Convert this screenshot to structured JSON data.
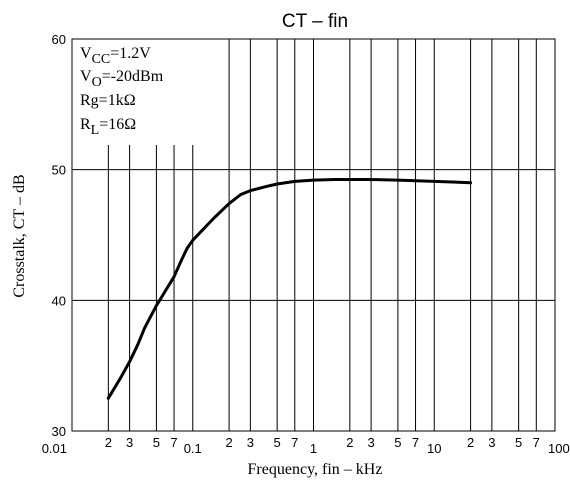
{
  "chart_data": {
    "type": "line",
    "title": "CT – fin",
    "xlabel": "Frequency, fin – kHz",
    "ylabel": "Crosstalk, CT – dB",
    "x_scale": "log",
    "xlim": [
      0.01,
      100
    ],
    "ylim": [
      30,
      60
    ],
    "grid": true,
    "y_ticks": [
      30,
      40,
      50,
      60
    ],
    "x_major_ticks": [
      {
        "value": 0.01,
        "label": "0.01"
      },
      {
        "value": 0.1,
        "label": "0.1"
      },
      {
        "value": 1,
        "label": "1"
      },
      {
        "value": 10,
        "label": "10"
      },
      {
        "value": 100,
        "label": "100"
      }
    ],
    "x_minor_ticks": [
      {
        "value": 0.02,
        "label": "2"
      },
      {
        "value": 0.03,
        "label": "3"
      },
      {
        "value": 0.05,
        "label": "5"
      },
      {
        "value": 0.07,
        "label": "7"
      },
      {
        "value": 0.2,
        "label": "2"
      },
      {
        "value": 0.3,
        "label": "3"
      },
      {
        "value": 0.5,
        "label": "5"
      },
      {
        "value": 0.7,
        "label": "7"
      },
      {
        "value": 2,
        "label": "2"
      },
      {
        "value": 3,
        "label": "3"
      },
      {
        "value": 5,
        "label": "5"
      },
      {
        "value": 7,
        "label": "7"
      },
      {
        "value": 20,
        "label": "2"
      },
      {
        "value": 30,
        "label": "3"
      },
      {
        "value": 50,
        "label": "5"
      },
      {
        "value": 70,
        "label": "7"
      }
    ],
    "conditions": [
      {
        "base": "V",
        "sub": "CC",
        "rest": "=1.2V"
      },
      {
        "base": "V",
        "sub": "O",
        "rest": "=-20dBm"
      },
      {
        "base": "Rg=1kΩ",
        "sub": "",
        "rest": ""
      },
      {
        "base": "R",
        "sub": "L",
        "rest": "=16Ω"
      }
    ],
    "series": [
      {
        "x": [
          0.02,
          0.025,
          0.03,
          0.035,
          0.04,
          0.05,
          0.06,
          0.07,
          0.08,
          0.09,
          0.1,
          0.15,
          0.2,
          0.25,
          0.3,
          0.4,
          0.5,
          0.7,
          1,
          1.5,
          2,
          3,
          5,
          7,
          10,
          15,
          20
        ],
        "y": [
          32.5,
          34.0,
          35.3,
          36.6,
          37.9,
          39.6,
          40.8,
          41.8,
          43.0,
          44.0,
          44.6,
          46.3,
          47.4,
          48.1,
          48.4,
          48.7,
          48.9,
          49.1,
          49.2,
          49.25,
          49.25,
          49.25,
          49.2,
          49.15,
          49.1,
          49.05,
          49.0
        ]
      }
    ]
  }
}
